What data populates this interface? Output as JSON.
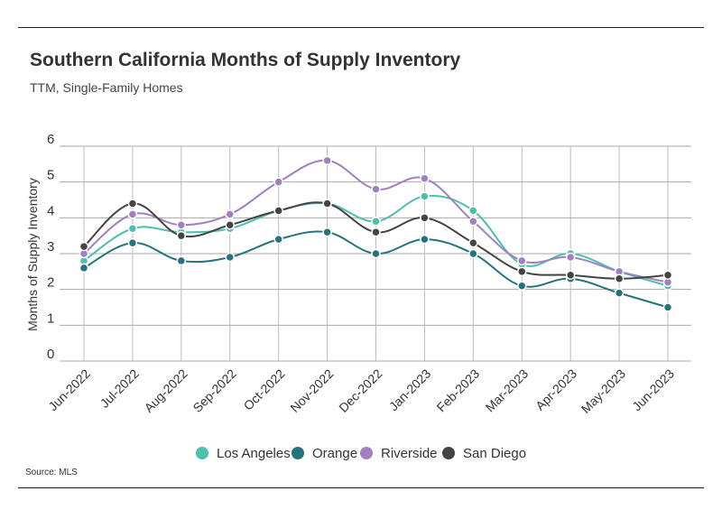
{
  "header": {
    "title": "Southern California Months of Supply Inventory",
    "subtitle": "TTM, Single-Family Homes"
  },
  "footer": {
    "source": "Source: MLS"
  },
  "chart_data": {
    "type": "line",
    "title": "Southern California Months of Supply Inventory",
    "subtitle": "TTM, Single-Family Homes",
    "xlabel": "",
    "ylabel": "Months of Supply Inventory",
    "ylim": [
      0,
      6
    ],
    "yticks": [
      0,
      1,
      2,
      3,
      4,
      5,
      6
    ],
    "grid": true,
    "legend": "bottom",
    "categories": [
      "Jun-2022",
      "Jul-2022",
      "Aug-2022",
      "Sep-2022",
      "Oct-2022",
      "Nov-2022",
      "Dec-2022",
      "Jan-2023",
      "Feb-2023",
      "Mar-2023",
      "Apr-2023",
      "May-2023",
      "Jun-2023"
    ],
    "series": [
      {
        "name": "Los Angeles",
        "color": "#4dbfad",
        "values": [
          2.8,
          3.7,
          3.6,
          3.7,
          4.2,
          4.4,
          3.9,
          4.6,
          4.2,
          2.7,
          3.0,
          2.5,
          2.1
        ]
      },
      {
        "name": "Orange",
        "color": "#24737d",
        "values": [
          2.6,
          3.3,
          2.8,
          2.9,
          3.4,
          3.6,
          3.0,
          3.4,
          3.0,
          2.1,
          2.3,
          1.9,
          1.5
        ]
      },
      {
        "name": "Riverside",
        "color": "#a07fc2",
        "values": [
          3.0,
          4.1,
          3.8,
          4.1,
          5.0,
          5.6,
          4.8,
          5.1,
          3.9,
          2.8,
          2.9,
          2.5,
          2.2
        ]
      },
      {
        "name": "San Diego",
        "color": "#444444",
        "values": [
          3.2,
          4.4,
          3.5,
          3.8,
          4.2,
          4.4,
          3.6,
          4.0,
          3.3,
          2.5,
          2.4,
          2.3,
          2.4
        ]
      }
    ]
  }
}
